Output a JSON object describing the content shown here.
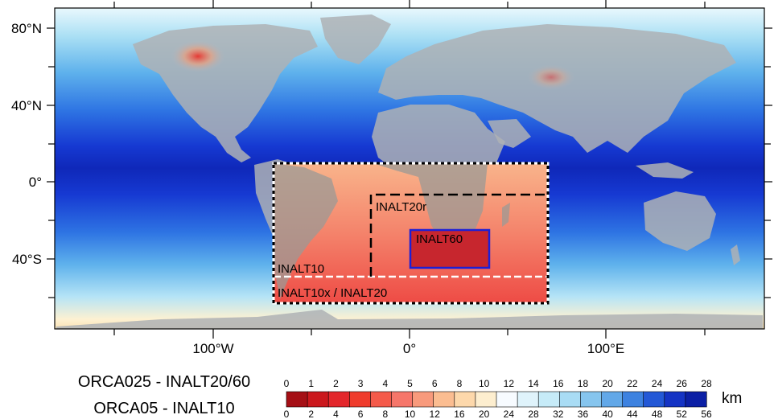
{
  "map": {
    "lat_labels": [
      "80°N",
      "40°N",
      "0°",
      "40°S"
    ],
    "lon_labels": [
      "100°W",
      "0°",
      "100°E"
    ],
    "domains": {
      "inalt10": "INALT10",
      "inalt10x": "INALT10x / INALT20",
      "inalt20r": "INALT20r",
      "inalt60": "INALT60"
    }
  },
  "legend": {
    "title_top": "ORCA025 - INALT20/60",
    "title_bottom": "ORCA05 - INALT10",
    "top_ticks": [
      "0",
      "1",
      "2",
      "3",
      "4",
      "5",
      "6",
      "8",
      "10",
      "12",
      "14",
      "16",
      "18",
      "20",
      "22",
      "24",
      "26",
      "28"
    ],
    "bottom_ticks": [
      "0",
      "2",
      "4",
      "6",
      "8",
      "10",
      "12",
      "16",
      "20",
      "24",
      "28",
      "32",
      "36",
      "40",
      "44",
      "48",
      "52",
      "56"
    ],
    "unit": "km",
    "colors": [
      "#a50f15",
      "#cb181d",
      "#e3262b",
      "#ef3b2c",
      "#f45a4a",
      "#f6766a",
      "#f89a7c",
      "#fbbd91",
      "#fdd8ab",
      "#fdeecf",
      "#f7fbff",
      "#dff3fb",
      "#c6ebf8",
      "#a9dcf4",
      "#86c5ee",
      "#62a8e8",
      "#3d82e0",
      "#2358d6",
      "#1433c4",
      "#0b1fa5"
    ]
  }
}
